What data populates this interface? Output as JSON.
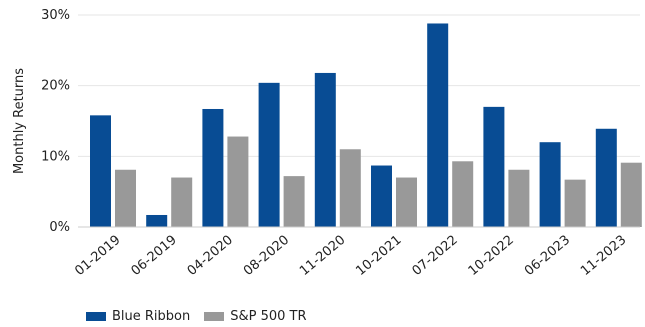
{
  "chart_data": {
    "type": "bar",
    "title": "",
    "xlabel": "",
    "ylabel": "Monthly Returns",
    "ylim": [
      0,
      30
    ],
    "y_ticks": [
      "0%",
      "10%",
      "20%",
      "30%"
    ],
    "grid": "horizontal",
    "legend_position": "bottom-left",
    "categories": [
      "01-2019",
      "06-2019",
      "04-2020",
      "08-2020",
      "11-2020",
      "10-2021",
      "07-2022",
      "10-2022",
      "06-2023",
      "11-2023"
    ],
    "series": [
      {
        "name": "Blue Ribbon",
        "color": "#084c94",
        "values": [
          15.8,
          1.7,
          16.7,
          20.4,
          21.8,
          8.7,
          28.8,
          17.0,
          12.0,
          13.9
        ]
      },
      {
        "name": "S&P 500 TR",
        "color": "#999999",
        "values": [
          8.1,
          7.0,
          12.8,
          7.2,
          11.0,
          7.0,
          9.3,
          8.1,
          6.7,
          9.1
        ]
      }
    ]
  }
}
